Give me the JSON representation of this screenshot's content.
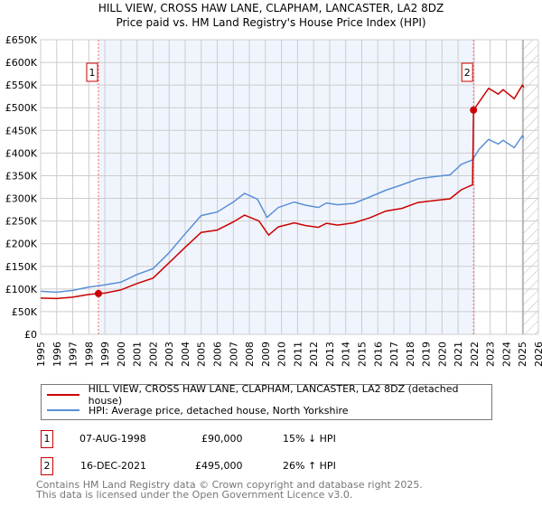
{
  "chart_data": {
    "type": "line",
    "title": "HILL VIEW, CROSS HAW LANE, CLAPHAM, LANCASTER, LA2 8DZ",
    "subtitle": "Price paid vs. HM Land Registry's House Price Index (HPI)",
    "xlim": [
      1995,
      2026
    ],
    "ylim": [
      0,
      650000
    ],
    "x_ticks": [
      "1995",
      "1996",
      "1997",
      "1998",
      "1999",
      "2000",
      "2001",
      "2002",
      "2003",
      "2004",
      "2005",
      "2006",
      "2007",
      "2008",
      "2009",
      "2010",
      "2011",
      "2012",
      "2013",
      "2014",
      "2015",
      "2016",
      "2017",
      "2018",
      "2019",
      "2020",
      "2021",
      "2022",
      "2023",
      "2024",
      "2025",
      "2026"
    ],
    "y_ticks": [
      {
        "v": 0,
        "l": "£0"
      },
      {
        "v": 50000,
        "l": "£50K"
      },
      {
        "v": 100000,
        "l": "£100K"
      },
      {
        "v": 150000,
        "l": "£150K"
      },
      {
        "v": 200000,
        "l": "£200K"
      },
      {
        "v": 250000,
        "l": "£250K"
      },
      {
        "v": 300000,
        "l": "£300K"
      },
      {
        "v": 350000,
        "l": "£350K"
      },
      {
        "v": 400000,
        "l": "£400K"
      },
      {
        "v": 450000,
        "l": "£450K"
      },
      {
        "v": 500000,
        "l": "£500K"
      },
      {
        "v": 550000,
        "l": "£550K"
      },
      {
        "v": 600000,
        "l": "£600K"
      },
      {
        "v": 650000,
        "l": "£650K"
      }
    ],
    "grid": true,
    "shaded_range": [
      1998.6,
      2021.96
    ],
    "forecast_hatch_from": 2025.05,
    "series": [
      {
        "name": "HILL VIEW, CROSS HAW LANE, CLAPHAM, LANCASTER, LA2 8DZ (detached house)",
        "color": "#cc0000",
        "x": [
          1995,
          1996,
          1997,
          1998,
          1998.6,
          1999,
          2000,
          2001,
          2002,
          2003,
          2004,
          2005,
          2006,
          2007,
          2007.7,
          2008.6,
          2009.2,
          2009.8,
          2010.8,
          2011.5,
          2012.3,
          2012.8,
          2013.5,
          2014.5,
          2015.5,
          2016.5,
          2017.5,
          2018.5,
          2019.5,
          2020.5,
          2021.2,
          2021.9,
          2021.96,
          2022.3,
          2022.9,
          2023.5,
          2023.8,
          2024.5,
          2025.0,
          2025.1
        ],
        "y": [
          80000,
          79000,
          82000,
          88000,
          90000,
          91000,
          98000,
          112000,
          124000,
          158000,
          192000,
          225000,
          230000,
          248000,
          263000,
          250000,
          219000,
          237000,
          246000,
          240000,
          236000,
          245000,
          241000,
          246000,
          257000,
          272000,
          278000,
          291000,
          295000,
          299000,
          319000,
          330000,
          495000,
          512000,
          543000,
          530000,
          540000,
          520000,
          550000,
          545000
        ]
      },
      {
        "name": "HPI: Average price, detached house, North Yorkshire",
        "color": "#5b8fd6",
        "x": [
          1995,
          1996,
          1997,
          1998,
          1999,
          2000,
          2001,
          2002,
          2003,
          2004,
          2005,
          2006,
          2007,
          2007.7,
          2008.5,
          2009.1,
          2009.8,
          2010.8,
          2011.5,
          2012.3,
          2012.8,
          2013.5,
          2014.5,
          2015.5,
          2016.5,
          2017.5,
          2018.5,
          2019.5,
          2020.5,
          2021.2,
          2021.9,
          2022.3,
          2022.9,
          2023.5,
          2023.8,
          2024.5,
          2025.0,
          2025.1
        ],
        "y": [
          95000,
          93000,
          97000,
          104000,
          109000,
          115000,
          132000,
          145000,
          180000,
          222000,
          262000,
          270000,
          292000,
          311000,
          298000,
          258000,
          280000,
          292000,
          285000,
          280000,
          290000,
          286000,
          289000,
          303000,
          318000,
          330000,
          343000,
          348000,
          352000,
          375000,
          385000,
          408000,
          430000,
          420000,
          428000,
          412000,
          438000,
          433000
        ]
      }
    ],
    "sales": [
      {
        "label": "1",
        "x": 1998.6,
        "y": 90000
      },
      {
        "label": "2",
        "x": 2021.96,
        "y": 495000
      }
    ]
  },
  "legend": {
    "red": "HILL VIEW, CROSS HAW LANE, CLAPHAM, LANCASTER, LA2 8DZ (detached house)",
    "blue": "HPI: Average price, detached house, North Yorkshire"
  },
  "transactions": [
    {
      "n": "1",
      "date": "07-AUG-1998",
      "price": "£90,000",
      "hpi": "15% ↓ HPI"
    },
    {
      "n": "2",
      "date": "16-DEC-2021",
      "price": "£495,000",
      "hpi": "26% ↑ HPI"
    }
  ],
  "footer": [
    "Contains HM Land Registry data © Crown copyright and database right 2025.",
    "This data is licensed under the Open Government Licence v3.0."
  ]
}
